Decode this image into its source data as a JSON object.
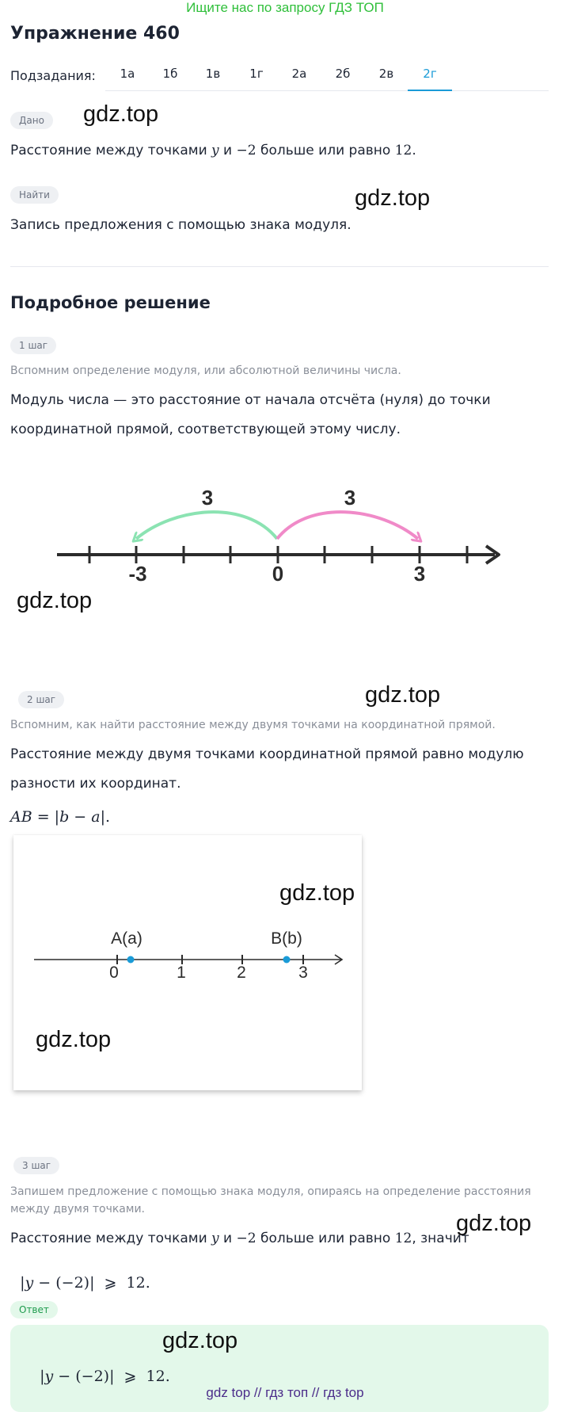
{
  "top_note": "Ищите нас по запросу ГДЗ ТОП",
  "exercise_title": "Упражнение 460",
  "subtasks_label": "Подзадания:",
  "tabs": [
    "1а",
    "1б",
    "1в",
    "1г",
    "2а",
    "2б",
    "2в",
    "2г"
  ],
  "active_tab": "2г",
  "given": {
    "label": "Дано",
    "text_before": "Расстояние между точками ",
    "var_y": "y",
    "text_mid": " и ",
    "neg_two": "−2",
    "text_after": " больше или равно ",
    "twelve": "12",
    "period": "."
  },
  "find": {
    "label": "Найти",
    "text": "Запись предложения с помощью знака модуля."
  },
  "solution_title": "Подробное решение",
  "step1": {
    "label": "1 шаг",
    "hint": "Вспомним определение модуля, или абсолютной величины числа.",
    "line1": "Модуль числа — это расстояние от начала отсчёта (нуля) до точки",
    "line2": "координатной прямой, соответствующей этому числу.",
    "figure": {
      "arc_left_label": "3",
      "arc_right_label": "3",
      "tick_neg3": "-3",
      "tick_0": "0",
      "tick_3": "3",
      "arc_left_color": "#8be3b2",
      "arc_right_color": "#f08ac8"
    }
  },
  "step2": {
    "label": "2 шаг",
    "hint": "Вспомним, как найти расстояние между двумя точками на координатной прямой.",
    "line1": "Расстояние между двумя точками координатной прямой равно модулю",
    "line2": "разности их координат.",
    "formula_lhs": "AB",
    "formula_eq": " = |",
    "formula_b": "b",
    "formula_minus": " − ",
    "formula_a": "a",
    "formula_end": "|.",
    "figure": {
      "point_a_label": "A(a)",
      "point_b_label": "B(b)",
      "ticks": [
        "0",
        "1",
        "2",
        "3"
      ],
      "point_color": "#1a9bd7"
    }
  },
  "step3": {
    "label": "3 шаг",
    "hint_line1": "Запишем предложение с помощью знака модуля, опираясь на определение расстояния",
    "hint_line2": "между двумя точками.",
    "text_before": "Расстояние между точками ",
    "var_y": "y",
    "text_mid": " и ",
    "neg_two": "−2",
    "text_after": " больше или равно ",
    "twelve": "12",
    "text_end": ", значит",
    "expr_open": "|",
    "expr_y": "y",
    "expr_rest": " − (−2)|  ⩾  12."
  },
  "answer": {
    "label": "Ответ",
    "expr_open": "|",
    "expr_y": "y",
    "expr_rest": " − (−2)|  ⩾  12."
  },
  "watermarks": [
    "gdz.top",
    "gdz.top",
    "gdz.top",
    "gdz.top",
    "gdz.top",
    "gdz.top",
    "gdz.top",
    "gdz.top"
  ],
  "footer": "gdz top  //  гдз топ  //  гдз top"
}
